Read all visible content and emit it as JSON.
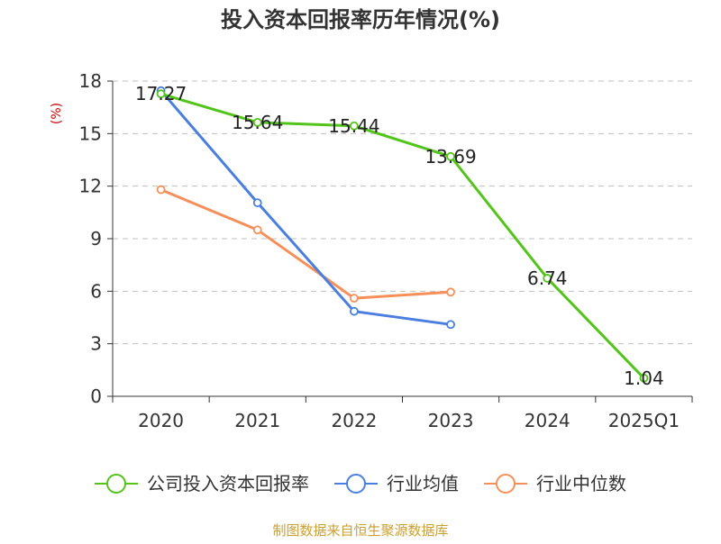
{
  "chart_data": {
    "type": "line",
    "title": "投入资本回报率历年情况(%)",
    "ylabel": "(%)",
    "xlabel": "",
    "categories": [
      "2020",
      "2021",
      "2022",
      "2023",
      "2024",
      "2025Q1"
    ],
    "ylim": [
      0,
      18
    ],
    "yticks": [
      0,
      3,
      6,
      9,
      12,
      15,
      18
    ],
    "grid": true,
    "legend_position": "bottom",
    "series": [
      {
        "name": "公司投入资本回报率",
        "color": "#52c41a",
        "values": [
          17.27,
          15.64,
          15.44,
          13.69,
          6.74,
          1.04
        ],
        "labels": [
          "17.27",
          "15.64",
          "15.44",
          "13.69",
          "6.74",
          "1.04"
        ]
      },
      {
        "name": "行业均值",
        "color": "#4a7fe0",
        "values": [
          17.45,
          11.05,
          4.85,
          4.1,
          null,
          null
        ]
      },
      {
        "name": "行业中位数",
        "color": "#f5905a",
        "values": [
          11.8,
          9.5,
          5.6,
          5.95,
          null,
          null
        ]
      }
    ]
  },
  "footer": {
    "source": "制图数据来自恒生聚源数据库"
  }
}
